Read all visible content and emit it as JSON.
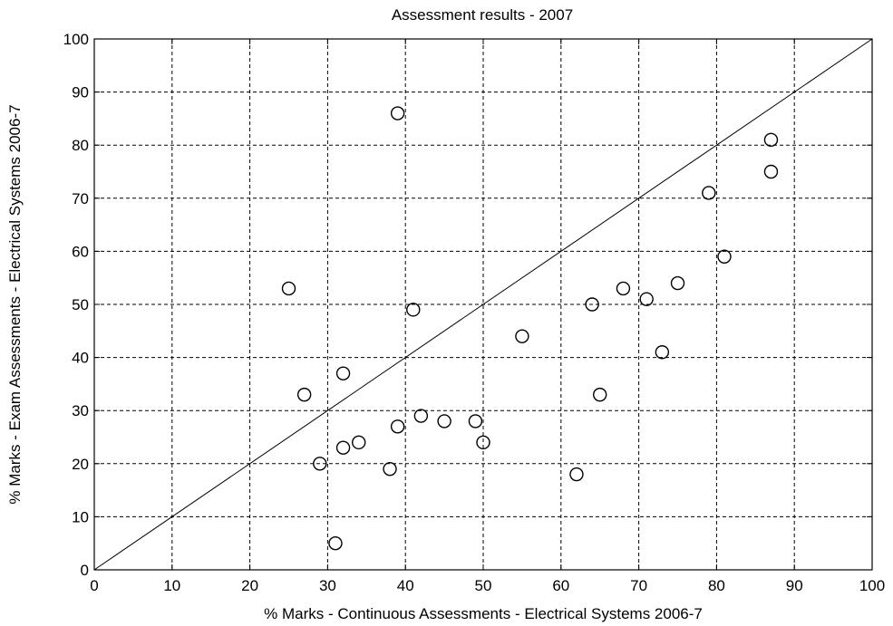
{
  "chart_data": {
    "type": "scatter",
    "title": "Assessment results - 2007",
    "xlabel": "% Marks - Continuous Assessments - Electrical Systems 2006-7",
    "ylabel": "% Marks - Exam Assessments - Electrical Systems 2006-7",
    "xlim": [
      0,
      100
    ],
    "ylim": [
      0,
      100
    ],
    "xticks": [
      0,
      10,
      20,
      30,
      40,
      50,
      60,
      70,
      80,
      90,
      100
    ],
    "yticks": [
      0,
      10,
      20,
      30,
      40,
      50,
      60,
      70,
      80,
      90,
      100
    ],
    "grid": true,
    "marker": "circle-open",
    "reference_line": [
      [
        0,
        0
      ],
      [
        100,
        100
      ]
    ],
    "points": [
      {
        "x": 25,
        "y": 53
      },
      {
        "x": 27,
        "y": 33
      },
      {
        "x": 29,
        "y": 20
      },
      {
        "x": 31,
        "y": 5
      },
      {
        "x": 32,
        "y": 37
      },
      {
        "x": 32,
        "y": 23
      },
      {
        "x": 34,
        "y": 24
      },
      {
        "x": 38,
        "y": 19
      },
      {
        "x": 39,
        "y": 86
      },
      {
        "x": 39,
        "y": 27
      },
      {
        "x": 41,
        "y": 49
      },
      {
        "x": 42,
        "y": 29
      },
      {
        "x": 45,
        "y": 28
      },
      {
        "x": 49,
        "y": 28
      },
      {
        "x": 50,
        "y": 24
      },
      {
        "x": 55,
        "y": 44
      },
      {
        "x": 62,
        "y": 18
      },
      {
        "x": 64,
        "y": 50
      },
      {
        "x": 65,
        "y": 33
      },
      {
        "x": 68,
        "y": 53
      },
      {
        "x": 71,
        "y": 51
      },
      {
        "x": 73,
        "y": 41
      },
      {
        "x": 75,
        "y": 54
      },
      {
        "x": 79,
        "y": 71
      },
      {
        "x": 81,
        "y": 59
      },
      {
        "x": 87,
        "y": 81
      },
      {
        "x": 87,
        "y": 75
      }
    ]
  }
}
